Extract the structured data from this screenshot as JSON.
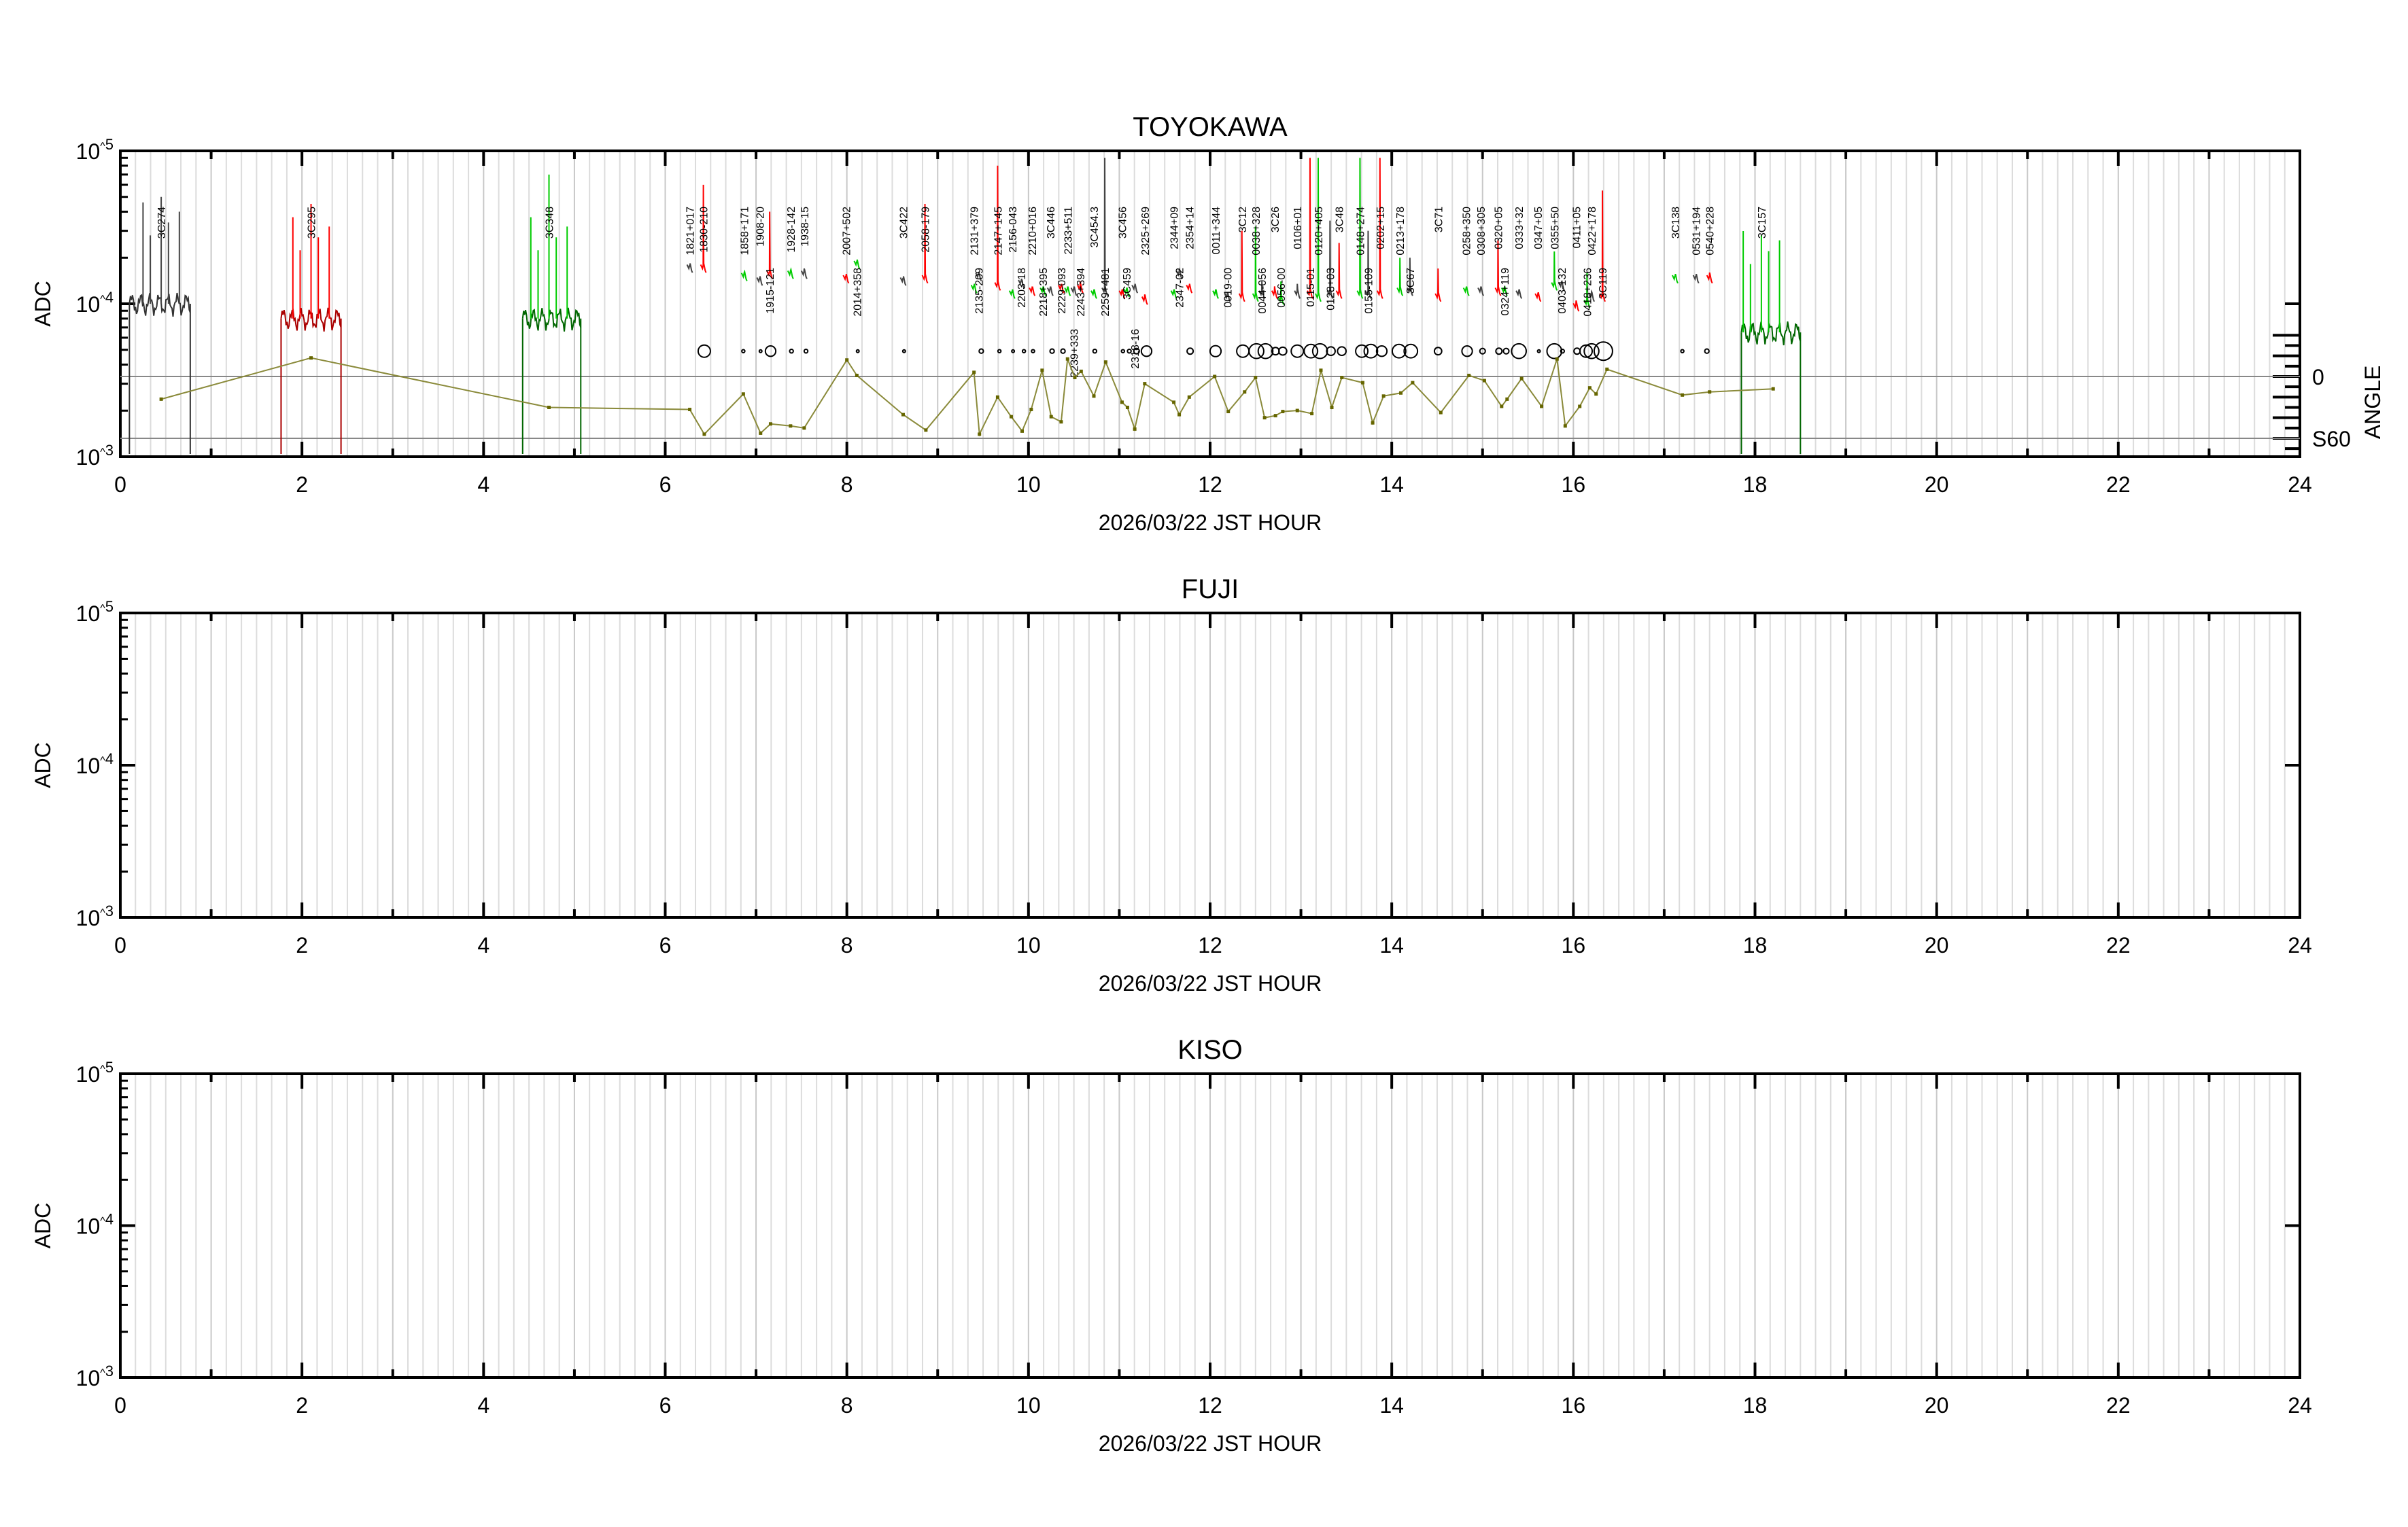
{
  "date_label": "2026/03/22 JST HOUR",
  "chart_data": [
    {
      "type": "line",
      "title": "TOYOKAWA",
      "xlabel": "2026/03/22 JST HOUR",
      "ylabel": "ADC",
      "y2label": "ANGLE",
      "y2_tick_labels": [
        "0",
        "S60"
      ],
      "xlim": [
        0,
        24
      ],
      "ylim": [
        1000,
        100000
      ],
      "yscale": "log",
      "y2lim": [
        -78,
        40
      ],
      "x_ticks": [
        "0",
        "2",
        "4",
        "6",
        "8",
        "10",
        "12",
        "14",
        "16",
        "18",
        "20",
        "22",
        "24"
      ],
      "y_ticks": [
        "10^3",
        "10^4",
        "10^5"
      ],
      "grid": "vertical every 10 min",
      "colors": {
        "gray": "#7a7a7a",
        "red": "#c00000",
        "green": "#007a00",
        "angle": "#8a8a3a",
        "trace_gray": "#444444",
        "trace_red": "#ff0000",
        "trace_green": "#00cc00"
      },
      "long_scans": [
        {
          "name": "3C274",
          "color": "gray",
          "start": 0.1,
          "end": 0.77,
          "hour": 0.45,
          "baseline": 10000,
          "peak": 50000
        },
        {
          "name": "3C295",
          "color": "red",
          "start": 1.77,
          "end": 2.43,
          "hour": 2.1,
          "baseline": 8000,
          "peak": 45000
        },
        {
          "name": "3C348",
          "color": "green",
          "start": 4.43,
          "end": 5.07,
          "hour": 4.72,
          "baseline": 8000,
          "peak": 70000
        },
        {
          "name": "3C157",
          "color": "green",
          "start": 17.85,
          "end": 18.5,
          "hour": 18.07,
          "baseline": 6500,
          "peak": 28000
        }
      ],
      "sources": [
        {
          "name": "1821+017",
          "hour": 6.27,
          "color": "gray",
          "baseline": 17000,
          "peak": 17500
        },
        {
          "name": "1830-210",
          "hour": 6.42,
          "color": "red",
          "baseline": 17000,
          "peak": 60000
        },
        {
          "name": "1858+171",
          "hour": 6.87,
          "color": "green",
          "baseline": 15000,
          "peak": 16000
        },
        {
          "name": "1908-20",
          "hour": 7.04,
          "color": "gray",
          "baseline": 14000,
          "peak": 14500
        },
        {
          "name": "1915-121",
          "hour": 7.15,
          "color": "red",
          "baseline": 15500,
          "peak": 40000
        },
        {
          "name": "1928-142",
          "hour": 7.38,
          "color": "green",
          "baseline": 15500,
          "peak": 16500
        },
        {
          "name": "1938-15",
          "hour": 7.53,
          "color": "gray",
          "baseline": 15500,
          "peak": 17000
        },
        {
          "name": "2007+502",
          "hour": 7.99,
          "color": "red",
          "baseline": 14500,
          "peak": 15000
        },
        {
          "name": "2014+358",
          "hour": 8.11,
          "color": "green",
          "baseline": 18000,
          "peak": 18500
        },
        {
          "name": "3C422",
          "hour": 8.62,
          "color": "gray",
          "baseline": 14000,
          "peak": 14500
        },
        {
          "name": "2058-179",
          "hour": 8.86,
          "color": "red",
          "baseline": 14500,
          "peak": 45000
        },
        {
          "name": "2131+379",
          "hour": 9.4,
          "color": "green",
          "baseline": 12500,
          "peak": 13000
        },
        {
          "name": "2135-209",
          "hour": 9.45,
          "color": "gray",
          "baseline": 15000,
          "peak": 15500
        },
        {
          "name": "2147+145",
          "hour": 9.66,
          "color": "red",
          "baseline": 13000,
          "peak": 80000
        },
        {
          "name": "2156-043",
          "hour": 9.82,
          "color": "green",
          "baseline": 11500,
          "peak": 11800
        },
        {
          "name": "2203-18",
          "hour": 9.92,
          "color": "gray",
          "baseline": 13500,
          "peak": 14000
        },
        {
          "name": "2210+016",
          "hour": 10.04,
          "color": "red",
          "baseline": 12000,
          "peak": 12500
        },
        {
          "name": "2218+395",
          "hour": 10.16,
          "color": "green",
          "baseline": 12000,
          "peak": 12500
        },
        {
          "name": "3C446",
          "hour": 10.24,
          "color": "gray",
          "baseline": 12000,
          "peak": 12500
        },
        {
          "name": "2229-093",
          "hour": 10.36,
          "color": "red",
          "baseline": 12500,
          "peak": 13000
        },
        {
          "name": "2233+511",
          "hour": 10.43,
          "color": "green",
          "baseline": 12000,
          "peak": 12500
        },
        {
          "name": "2239+333",
          "hour": 10.5,
          "color": "gray",
          "baseline": 12000,
          "peak": 12500
        },
        {
          "name": "2243+394",
          "hour": 10.57,
          "color": "red",
          "baseline": 12500,
          "peak": 14000
        },
        {
          "name": "3C454.3",
          "hour": 10.72,
          "color": "green",
          "baseline": 11500,
          "peak": 12000
        },
        {
          "name": "2259+481",
          "hour": 10.84,
          "color": "gray",
          "baseline": 12000,
          "peak": 90000
        },
        {
          "name": "3C456",
          "hour": 11.03,
          "color": "red",
          "baseline": 11500,
          "peak": 12000
        },
        {
          "name": "3C459",
          "hour": 11.08,
          "color": "green",
          "baseline": 11800,
          "peak": 12500
        },
        {
          "name": "2318-16",
          "hour": 11.17,
          "color": "gray",
          "baseline": 12500,
          "peak": 13000
        },
        {
          "name": "2325+269",
          "hour": 11.28,
          "color": "red",
          "baseline": 10500,
          "peak": 11500
        },
        {
          "name": "2344+09",
          "hour": 11.6,
          "color": "green",
          "baseline": 11500,
          "peak": 12000
        },
        {
          "name": "2347-02",
          "hour": 11.66,
          "color": "gray",
          "baseline": 15500,
          "peak": 16500
        },
        {
          "name": "2354+14",
          "hour": 11.77,
          "color": "red",
          "baseline": 12500,
          "peak": 13000
        },
        {
          "name": "0011+344",
          "hour": 12.06,
          "color": "green",
          "baseline": 11500,
          "peak": 12000
        },
        {
          "name": "0019-00",
          "hour": 12.19,
          "color": "gray",
          "baseline": 11000,
          "peak": 11500
        },
        {
          "name": "3C12",
          "hour": 12.35,
          "color": "red",
          "baseline": 11000,
          "peak": 30000
        },
        {
          "name": "0038+328",
          "hour": 12.5,
          "color": "green",
          "baseline": 11000,
          "peak": 32000
        },
        {
          "name": "0044-056",
          "hour": 12.57,
          "color": "gray",
          "baseline": 11500,
          "peak": 14000
        },
        {
          "name": "3C26",
          "hour": 12.71,
          "color": "red",
          "baseline": 11500,
          "peak": 13000
        },
        {
          "name": "0056-00",
          "hour": 12.78,
          "color": "green",
          "baseline": 10500,
          "peak": 14000
        },
        {
          "name": "0106+01",
          "hour": 12.96,
          "color": "gray",
          "baseline": 11500,
          "peak": 13500
        },
        {
          "name": "0115-01",
          "hour": 13.1,
          "color": "red",
          "baseline": 11500,
          "peak": 90000
        },
        {
          "name": "0120+405",
          "hour": 13.19,
          "color": "green",
          "baseline": 11000,
          "peak": 90000
        },
        {
          "name": "0128+03",
          "hour": 13.32,
          "color": "gray",
          "baseline": 11500,
          "peak": 35000
        },
        {
          "name": "3C48",
          "hour": 13.42,
          "color": "red",
          "baseline": 11500,
          "peak": 25000
        },
        {
          "name": "0148+274",
          "hour": 13.65,
          "color": "green",
          "baseline": 11500,
          "peak": 90000
        },
        {
          "name": "0155-109",
          "hour": 13.74,
          "color": "gray",
          "baseline": 11500,
          "peak": 30000
        },
        {
          "name": "0202+15",
          "hour": 13.87,
          "color": "red",
          "baseline": 11500,
          "peak": 90000
        },
        {
          "name": "0213+178",
          "hour": 14.09,
          "color": "green",
          "baseline": 12000,
          "peak": 20000
        },
        {
          "name": "3C67",
          "hour": 14.2,
          "color": "gray",
          "baseline": 12000,
          "peak": 20000
        },
        {
          "name": "3C71",
          "hour": 14.51,
          "color": "red",
          "baseline": 11000,
          "peak": 17000
        },
        {
          "name": "0258+350",
          "hour": 14.82,
          "color": "green",
          "baseline": 12000,
          "peak": 12500
        },
        {
          "name": "0308+305",
          "hour": 14.98,
          "color": "gray",
          "baseline": 12000,
          "peak": 12500
        },
        {
          "name": "0320+05",
          "hour": 15.17,
          "color": "red",
          "baseline": 12000,
          "peak": 26000
        },
        {
          "name": "0324+119",
          "hour": 15.24,
          "color": "green",
          "baseline": 12000,
          "peak": 12500
        },
        {
          "name": "0333+32",
          "hour": 15.4,
          "color": "gray",
          "baseline": 11500,
          "peak": 12000
        },
        {
          "name": "0347+05",
          "hour": 15.61,
          "color": "red",
          "baseline": 11000,
          "peak": 11500
        },
        {
          "name": "0355+50",
          "hour": 15.79,
          "color": "green",
          "baseline": 13000,
          "peak": 22000
        },
        {
          "name": "0403-132",
          "hour": 15.87,
          "color": "gray",
          "baseline": 13000,
          "peak": 14000
        },
        {
          "name": "0411+05",
          "hour": 16.03,
          "color": "red",
          "baseline": 9500,
          "peak": 10500
        },
        {
          "name": "0418+236",
          "hour": 16.15,
          "color": "green",
          "baseline": 10000,
          "peak": 16000
        },
        {
          "name": "0422+178",
          "hour": 16.2,
          "color": "gray",
          "baseline": 11000,
          "peak": 12000
        },
        {
          "name": "3C119",
          "hour": 16.32,
          "color": "red",
          "baseline": 11000,
          "peak": 55000
        },
        {
          "name": "3C138",
          "hour": 17.12,
          "color": "green",
          "baseline": 14500,
          "peak": 15000
        },
        {
          "name": "0531+194",
          "hour": 17.35,
          "color": "gray",
          "baseline": 14500,
          "peak": 15000
        },
        {
          "name": "0540+228",
          "hour": 17.5,
          "color": "red",
          "baseline": 14500,
          "peak": 16000
        }
      ],
      "markers": {
        "adc": 4900,
        "hours": [
          6.43,
          6.86,
          7.05,
          7.16,
          7.39,
          7.55,
          8.12,
          8.63,
          9.48,
          9.68,
          9.83,
          9.95,
          10.05,
          10.26,
          10.38,
          10.73,
          11.04,
          11.11,
          11.19,
          11.3,
          11.78,
          12.06,
          12.36,
          12.51,
          12.61,
          12.72,
          12.8,
          12.96,
          13.11,
          13.21,
          13.33,
          13.45,
          13.67,
          13.77,
          13.89,
          14.08,
          14.21,
          14.51,
          14.83,
          15.0,
          15.18,
          15.26,
          15.4,
          15.62,
          15.79,
          15.88,
          16.04,
          16.14,
          16.2,
          16.33,
          17.2,
          17.47
        ],
        "sizes": [
          20,
          5,
          3,
          17,
          6,
          6,
          4,
          4,
          7,
          5,
          3,
          5,
          5,
          7,
          7,
          6,
          5,
          6,
          9,
          17,
          10,
          18,
          20,
          24,
          24,
          12,
          13,
          20,
          22,
          24,
          14,
          14,
          20,
          22,
          17,
          22,
          22,
          12,
          17,
          9,
          10,
          9,
          24,
          4,
          24,
          6,
          10,
          20,
          24,
          30,
          5,
          7
        ]
      },
      "angle_series": {
        "hours": [
          0.45,
          2.1,
          4.72,
          6.27,
          6.43,
          6.86,
          7.05,
          7.16,
          7.38,
          7.53,
          8.0,
          8.11,
          8.62,
          8.87,
          9.4,
          9.46,
          9.66,
          9.81,
          9.93,
          10.03,
          10.15,
          10.25,
          10.36,
          10.43,
          10.51,
          10.58,
          10.72,
          10.85,
          11.03,
          11.09,
          11.17,
          11.28,
          11.6,
          11.66,
          11.77,
          12.05,
          12.2,
          12.38,
          12.5,
          12.6,
          12.72,
          12.8,
          12.96,
          13.12,
          13.22,
          13.34,
          13.45,
          13.68,
          13.79,
          13.91,
          14.1,
          14.23,
          14.54,
          14.85,
          15.02,
          15.21,
          15.27,
          15.43,
          15.65,
          15.82,
          15.91,
          16.07,
          16.18,
          16.25,
          16.37,
          17.2,
          17.5,
          18.2
        ],
        "angles": [
          -22,
          18,
          -30,
          -32,
          -56,
          -17,
          -55,
          -46,
          -48,
          -50,
          16,
          1,
          -37,
          -52,
          4,
          -56,
          -20,
          -39,
          -53,
          -32,
          6,
          -39,
          -44,
          17,
          -1,
          5,
          -19,
          14,
          -25,
          -30,
          -51,
          -7,
          -25,
          -37,
          -20,
          0,
          -34,
          -15,
          -1,
          -40,
          -38,
          -34,
          -33,
          -36,
          6,
          -30,
          -1,
          -6,
          -45,
          -19,
          -16,
          -6,
          -35,
          1,
          -4,
          -29,
          -22,
          -2,
          -29,
          17,
          -48,
          -29,
          -11,
          -17,
          7,
          -18,
          -15,
          -12
        ]
      }
    },
    {
      "type": "line",
      "title": "FUJI",
      "xlabel": "2026/03/22 JST HOUR",
      "ylabel": "ADC",
      "xlim": [
        0,
        24
      ],
      "ylim": [
        1000,
        100000
      ],
      "yscale": "log",
      "x_ticks": [
        "0",
        "2",
        "4",
        "6",
        "8",
        "10",
        "12",
        "14",
        "16",
        "18",
        "20",
        "22",
        "24"
      ],
      "y_ticks": [
        "10^3",
        "10^4",
        "10^5"
      ],
      "grid": "vertical every 10 min"
    },
    {
      "type": "line",
      "title": "KISO",
      "xlabel": "2026/03/22 JST HOUR",
      "ylabel": "ADC",
      "xlim": [
        0,
        24
      ],
      "ylim": [
        1000,
        100000
      ],
      "yscale": "log",
      "x_ticks": [
        "0",
        "2",
        "4",
        "6",
        "8",
        "10",
        "12",
        "14",
        "16",
        "18",
        "20",
        "22",
        "24"
      ],
      "y_ticks": [
        "10^3",
        "10^4",
        "10^5"
      ],
      "grid": "vertical every 10 min"
    }
  ]
}
